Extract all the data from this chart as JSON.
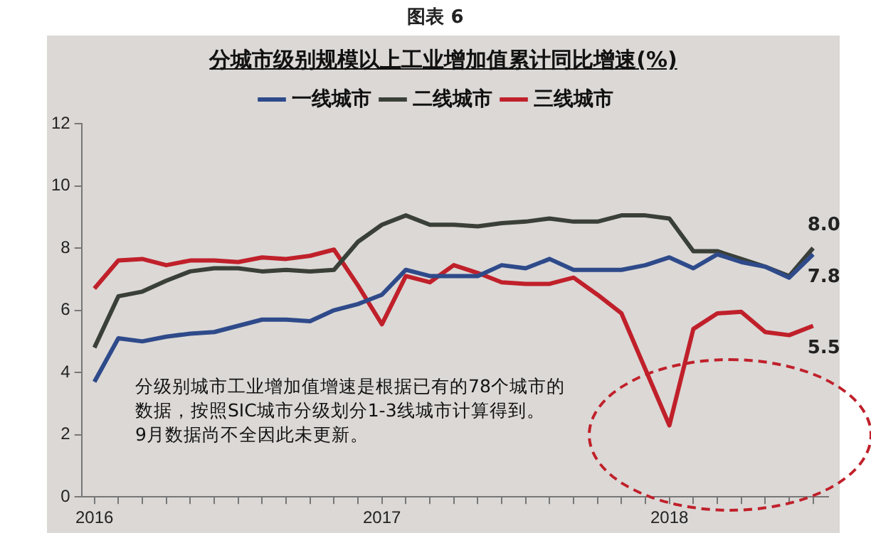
{
  "chart_data": {
    "type": "line",
    "title": "分城市级别规模以上工业增加值累计同比增速(%)",
    "x": [
      "2016-01",
      "2016-02",
      "2016-03",
      "2016-04",
      "2016-05",
      "2016-06",
      "2016-07",
      "2016-08",
      "2016-09",
      "2016-10",
      "2016-11",
      "2016-12",
      "2017-01",
      "2017-02",
      "2017-03",
      "2017-04",
      "2017-05",
      "2017-06",
      "2017-07",
      "2017-08",
      "2017-09",
      "2017-10",
      "2017-11",
      "2017-12",
      "2018-01",
      "2018-02",
      "2018-03",
      "2018-04",
      "2018-05",
      "2018-06",
      "2018-07"
    ],
    "series": [
      {
        "name": "一线城市",
        "color": "#2e4a8a",
        "values": [
          3.7,
          5.1,
          5.0,
          5.15,
          5.25,
          5.3,
          5.5,
          5.7,
          5.7,
          5.65,
          6.0,
          6.2,
          6.5,
          7.3,
          7.1,
          7.1,
          7.1,
          7.45,
          7.35,
          7.65,
          7.3,
          7.3,
          7.3,
          7.45,
          7.7,
          7.35,
          7.8,
          7.55,
          7.4,
          7.05,
          7.8
        ],
        "value_labels": [
          null,
          null,
          null,
          null,
          null,
          null,
          null,
          null,
          null,
          null,
          null,
          null,
          null,
          null,
          null,
          null,
          null,
          null,
          null,
          null,
          null,
          null,
          null,
          null,
          null,
          null,
          null,
          null,
          null,
          null,
          "7.8"
        ]
      },
      {
        "name": "二线城市",
        "color": "#3a4038",
        "values": [
          4.8,
          6.45,
          6.6,
          6.95,
          7.25,
          7.35,
          7.35,
          7.25,
          7.3,
          7.25,
          7.3,
          8.2,
          8.75,
          9.05,
          8.75,
          8.75,
          8.7,
          8.8,
          8.85,
          8.95,
          8.85,
          8.85,
          9.05,
          9.05,
          8.95,
          7.9,
          7.9,
          7.65,
          7.4,
          7.1,
          8.0
        ],
        "value_labels": [
          null,
          null,
          null,
          null,
          null,
          null,
          null,
          null,
          null,
          null,
          null,
          null,
          null,
          null,
          null,
          null,
          null,
          null,
          null,
          null,
          null,
          null,
          null,
          null,
          null,
          null,
          null,
          null,
          null,
          null,
          "8.0"
        ]
      },
      {
        "name": "三线城市",
        "color": "#c0202a",
        "values": [
          6.7,
          7.6,
          7.65,
          7.45,
          7.6,
          7.6,
          7.55,
          7.7,
          7.65,
          7.75,
          7.95,
          6.8,
          5.55,
          7.1,
          6.9,
          7.45,
          7.2,
          6.9,
          6.85,
          6.85,
          7.05,
          6.5,
          5.9,
          4.1,
          2.3,
          5.4,
          5.9,
          5.95,
          5.3,
          5.2,
          5.5
        ],
        "value_labels": [
          null,
          null,
          null,
          null,
          null,
          null,
          null,
          null,
          null,
          null,
          null,
          null,
          null,
          null,
          null,
          null,
          null,
          null,
          null,
          null,
          null,
          null,
          null,
          null,
          null,
          null,
          null,
          null,
          null,
          null,
          "5.5"
        ]
      }
    ],
    "xlim": [
      "2015-12-15",
      "2018-07-20"
    ],
    "xticks": [
      {
        "value": "2016-01",
        "label": "2016"
      },
      {
        "value": "2016-02",
        "label": null
      },
      {
        "value": "2016-03",
        "label": null
      },
      {
        "value": "2016-04",
        "label": null
      },
      {
        "value": "2016-05",
        "label": null
      },
      {
        "value": "2016-06",
        "label": null
      },
      {
        "value": "2016-07",
        "label": null
      },
      {
        "value": "2016-08",
        "label": null
      },
      {
        "value": "2016-09",
        "label": null
      },
      {
        "value": "2016-10",
        "label": null
      },
      {
        "value": "2016-11",
        "label": null
      },
      {
        "value": "2016-12",
        "label": null
      },
      {
        "value": "2017-01",
        "label": "2017"
      },
      {
        "value": "2017-02",
        "label": null
      },
      {
        "value": "2017-03",
        "label": null
      },
      {
        "value": "2017-04",
        "label": null
      },
      {
        "value": "2017-05",
        "label": null
      },
      {
        "value": "2017-06",
        "label": null
      },
      {
        "value": "2017-07",
        "label": null
      },
      {
        "value": "2017-08",
        "label": null
      },
      {
        "value": "2017-09",
        "label": null
      },
      {
        "value": "2017-10",
        "label": null
      },
      {
        "value": "2017-11",
        "label": null
      },
      {
        "value": "2017-12",
        "label": null
      },
      {
        "value": "2018-01",
        "label": "2018"
      },
      {
        "value": "2018-02",
        "label": null
      },
      {
        "value": "2018-03",
        "label": null
      },
      {
        "value": "2018-04",
        "label": null
      },
      {
        "value": "2018-05",
        "label": null
      },
      {
        "value": "2018-06",
        "label": null
      },
      {
        "value": "2018-07",
        "label": null
      }
    ],
    "ylim": [
      0,
      12
    ],
    "yticks": [
      0,
      2,
      4,
      6,
      8,
      10,
      12
    ],
    "grid": false,
    "legend": "top",
    "marker": "none",
    "line_style": "solid",
    "annotations": [
      "图表 6",
      "分级别城市工业增加值增速是根据已有的78个城市的数据，按照SIC城市分级划分1-3线城市计算得到。",
      "9月数据尚不全因此未更新。"
    ]
  }
}
